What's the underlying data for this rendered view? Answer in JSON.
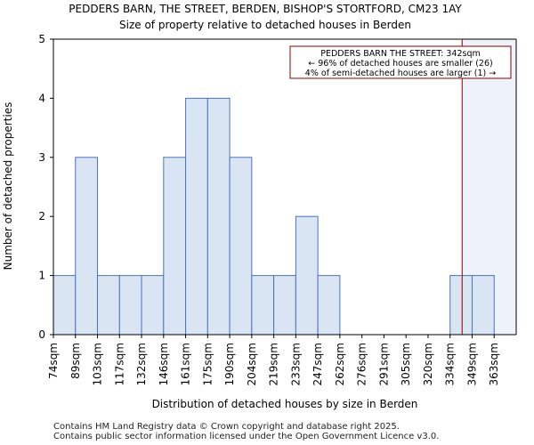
{
  "chart_data": {
    "type": "bar",
    "title": "PEDDERS BARN, THE STREET, BERDEN, BISHOP'S STORTFORD, CM23 1AY",
    "subtitle": "Size of property relative to detached houses in Berden",
    "xlabel": "Distribution of detached houses by size in Berden",
    "ylabel": "Number of detached properties",
    "categories": [
      "74sqm",
      "89sqm",
      "103sqm",
      "117sqm",
      "132sqm",
      "146sqm",
      "161sqm",
      "175sqm",
      "190sqm",
      "204sqm",
      "219sqm",
      "233sqm",
      "247sqm",
      "262sqm",
      "276sqm",
      "291sqm",
      "305sqm",
      "320sqm",
      "334sqm",
      "349sqm",
      "363sqm"
    ],
    "values": [
      1,
      3,
      1,
      1,
      1,
      3,
      4,
      4,
      3,
      1,
      1,
      2,
      1,
      0,
      0,
      0,
      0,
      0,
      1,
      1,
      0
    ],
    "ylim": [
      0,
      5
    ],
    "yticks": [
      0,
      1,
      2,
      3,
      4,
      5
    ],
    "grid": false,
    "bar_color": "#dae5f4",
    "bar_edge_color": "#4a72c4",
    "highlight_color": "#8b0000",
    "marker_value_sqm": 342,
    "annotation": {
      "lines": [
        "PEDDERS BARN THE STREET: 342sqm",
        "← 96% of detached houses are smaller (26)",
        "4% of semi-detached houses are larger (1) →"
      ]
    }
  },
  "footer": {
    "line1": "Contains HM Land Registry data © Crown copyright and database right 2025.",
    "line2": "Contains public sector information licensed under the Open Government Licence v3.0."
  }
}
